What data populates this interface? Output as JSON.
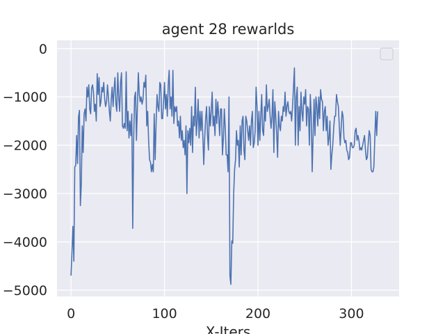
{
  "chart_data": {
    "type": "line",
    "title": "agent 28 rewarlds",
    "xlabel": "X-Iters",
    "ylabel": "",
    "xlim": [
      -15,
      351
    ],
    "ylim": [
      -5130,
      170
    ],
    "x_ticks": [
      0,
      100,
      200,
      300
    ],
    "y_ticks": [
      0,
      -1000,
      -2000,
      -3000,
      -4000,
      -5000
    ],
    "x_tick_labels": [
      "0",
      "100",
      "200",
      "300"
    ],
    "y_tick_labels": [
      "0",
      "−1000",
      "−2000",
      "−3000",
      "−4000",
      "−5000"
    ],
    "grid": true,
    "legend": "top-right, empty",
    "background_color": "#eaeaf2",
    "grid_color": "#ffffff",
    "line_color": "#4c72b0",
    "series": [
      {
        "x_start": 0,
        "x_step": 1,
        "values": [
          -4700,
          -4200,
          -3680,
          -4400,
          -2450,
          -2420,
          -1800,
          -2380,
          -1420,
          -1280,
          -3250,
          -2800,
          -1600,
          -2150,
          -1350,
          -1250,
          -1500,
          -800,
          -1000,
          -750,
          -1250,
          -1350,
          -820,
          -750,
          -900,
          -1300,
          -1150,
          -1500,
          -520,
          -950,
          -600,
          -1200,
          -1100,
          -800,
          -900,
          -700,
          -1050,
          -1200,
          -1100,
          -750,
          -1000,
          -1300,
          -1500,
          -1050,
          -800,
          -1200,
          -850,
          -600,
          -1150,
          -1300,
          -500,
          -1000,
          -1300,
          -700,
          -500,
          -1600,
          -1650,
          -1550,
          -1650,
          -480,
          -1700,
          -1300,
          -1850,
          -1500,
          -1800,
          -1350,
          -3720,
          -1900,
          -1000,
          -900,
          -1900,
          -1200,
          -500,
          -950,
          -1100,
          -1000,
          -1150,
          -1050,
          -700,
          -800,
          -550,
          -1600,
          -1300,
          -1900,
          -2300,
          -2350,
          -2550,
          -2400,
          -2550,
          -1350,
          -2300,
          -1550,
          -950,
          -1200,
          -1300,
          -700,
          -750,
          -1450,
          -1450,
          -1100,
          -700,
          -1250,
          -950,
          -1400,
          -750,
          -450,
          -1250,
          -1000,
          -1400,
          -450,
          -1550,
          -1200,
          -1300,
          -1200,
          -1600,
          -1500,
          -1850,
          -1400,
          -1900,
          -1700,
          -2050,
          -1900,
          -2200,
          -1600,
          -3000,
          -1700,
          -1950,
          -1650,
          -2000,
          -1200,
          -2150,
          -1400,
          -1600,
          -800,
          -1800,
          -1500,
          -1050,
          -1850,
          -1300,
          -1700,
          -1300,
          -1800,
          -2400,
          -1850,
          -1450,
          -1200,
          -1800,
          -2100,
          -1200,
          -1600,
          -1300,
          -900,
          -1600,
          -1400,
          -1800,
          -1050,
          -1550,
          -1100,
          -1400,
          -1800,
          -1250,
          -1250,
          -2200,
          -1850,
          -1250,
          -1650,
          -2200,
          -2200,
          -2550,
          -1000,
          -4700,
          -4880,
          -3980,
          -4030,
          -3000,
          -2500,
          -2300,
          -1700,
          -2000,
          -1900,
          -2450,
          -1600,
          -2200,
          -1500,
          -1400,
          -2100,
          -2300,
          -1400,
          -1500,
          -1700,
          -1900,
          -1600,
          -2000,
          -1500,
          -1300,
          -2050,
          -1950,
          -1700,
          -800,
          -1200,
          -2000,
          -1300,
          -1900,
          -1400,
          -950,
          -1700,
          -1800,
          -1200,
          -1500,
          -750,
          -1300,
          -1200,
          -1050,
          -1400,
          -1650,
          -1400,
          -850,
          -2150,
          -1100,
          -1400,
          -1750,
          -2250,
          -1300,
          -1600,
          -1700,
          -1400,
          -1500,
          -1200,
          -1300,
          -900,
          -1400,
          -1200,
          -1100,
          -1300,
          -1350,
          -1300,
          -1500,
          -1200,
          -800,
          -400,
          -2000,
          -1000,
          -800,
          -2000,
          -1200,
          -1700,
          -900,
          -1300,
          -1500,
          -1000,
          -1150,
          -850,
          -1600,
          -1200,
          -1250,
          -2000,
          -950,
          -1400,
          -2550,
          -1800,
          -1050,
          -1800,
          -1000,
          -1200,
          -1600,
          -1000,
          -1450,
          -850,
          -1050,
          -1100,
          -1700,
          -1300,
          -1200,
          -1700,
          -1400,
          -2000,
          -1850,
          -1500,
          -2500,
          -2200,
          -2000,
          -1650,
          -1400,
          -1400,
          -950,
          -1100,
          -1200,
          -1600,
          -2000,
          -1650,
          -1300,
          -1400,
          -1850,
          -1950,
          -1900,
          -2100,
          -2150,
          -2300,
          -2250,
          -1950,
          -1950,
          -2050,
          -2050,
          -2000,
          -1700,
          -1650,
          -1900,
          -1800,
          -1900,
          -2100,
          -2050,
          -2100,
          -2000,
          -1900,
          -1800,
          -2100,
          -2300,
          -2250,
          -1950,
          -1700,
          -1800,
          -2500,
          -2550,
          -2550,
          -2450,
          -1850,
          -1300,
          -1800,
          -1300
        ]
      }
    ]
  }
}
